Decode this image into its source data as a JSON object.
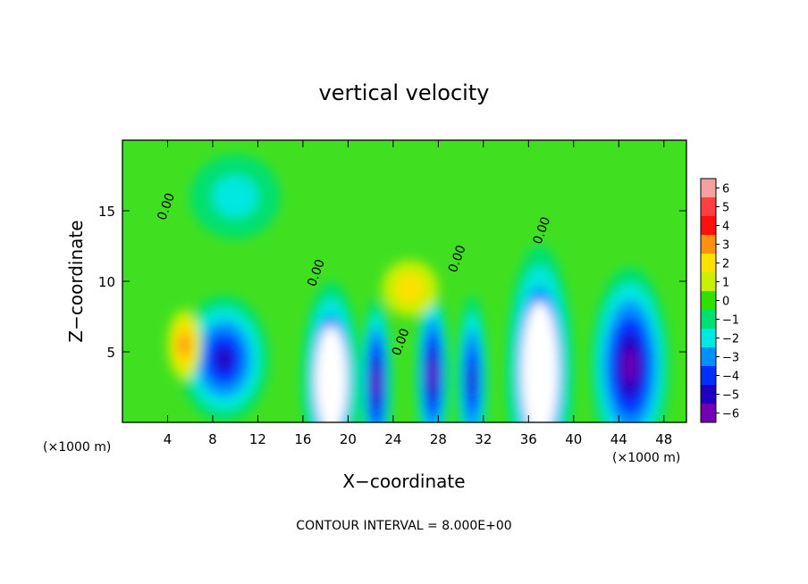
{
  "chart_data": {
    "type": "heatmap",
    "title": "vertical velocity",
    "xlabel": "X−coordinate",
    "ylabel": "Z−coordinate",
    "x_unit_left": "(×1000 m)",
    "x_unit_right": "(×1000 m)",
    "xlim": [
      0,
      50
    ],
    "ylim": [
      0,
      20
    ],
    "x_ticks": [
      4,
      8,
      12,
      16,
      20,
      24,
      28,
      32,
      36,
      40,
      44,
      48
    ],
    "x_tick_labels": [
      "4",
      "8",
      "12",
      "16",
      "20",
      "24",
      "28",
      "32",
      "36",
      "40",
      "44",
      "48"
    ],
    "y_ticks": [
      5,
      10,
      15
    ],
    "y_tick_labels": [
      "5",
      "10",
      "15"
    ],
    "colorbar": {
      "levels": [
        6,
        5,
        4,
        3,
        2,
        1,
        0,
        -1,
        -2,
        -3,
        -4,
        -5,
        -6
      ],
      "labels": [
        "6",
        "5",
        "4",
        "3",
        "2",
        "1",
        "0",
        "−1",
        "−2",
        "−3",
        "−4",
        "−5",
        "−6"
      ],
      "colors": [
        "#f8a0a0",
        "#ff4040",
        "#ff1010",
        "#ff9010",
        "#ffe000",
        "#c8f000",
        "#30e000",
        "#00e070",
        "#00e8e0",
        "#0090ff",
        "#0030ff",
        "#2000c0",
        "#7000b0"
      ]
    },
    "background_color": "#40e020",
    "cells": [
      {
        "x": 18.5,
        "z": 3.0,
        "rx": 2.6,
        "rz": 7.0,
        "w": -6,
        "label": ""
      },
      {
        "x": 22.5,
        "z": 2.8,
        "rx": 1.4,
        "rz": 6.0,
        "w": -5.5,
        "label": ""
      },
      {
        "x": 27.5,
        "z": 3.4,
        "rx": 1.5,
        "rz": 6.0,
        "w": -5.5,
        "label": ""
      },
      {
        "x": 31.0,
        "z": 3.0,
        "rx": 1.4,
        "rz": 6.0,
        "w": -5.0,
        "label": ""
      },
      {
        "x": 37.0,
        "z": 3.6,
        "rx": 3.0,
        "rz": 9.0,
        "w": -6,
        "label": ""
      },
      {
        "x": 45.0,
        "z": 4.0,
        "rx": 3.5,
        "rz": 7.0,
        "w": -5.5,
        "label": ""
      },
      {
        "x": 9.0,
        "z": 4.5,
        "rx": 4.0,
        "rz": 4.5,
        "w": -5.0,
        "label": ""
      },
      {
        "x": 5.5,
        "z": 5.5,
        "rx": 1.5,
        "rz": 2.5,
        "w": 3.0,
        "label": ""
      },
      {
        "x": 25.5,
        "z": 9.5,
        "rx": 2.5,
        "rz": 2.0,
        "w": 2.0,
        "label": ""
      },
      {
        "x": 10.0,
        "z": 16.0,
        "rx": 4.0,
        "rz": 3.0,
        "w": -1.5,
        "label": ""
      }
    ],
    "contour_labels": [
      {
        "x": 4.2,
        "z": 15.2,
        "text": "0.00"
      },
      {
        "x": 17.5,
        "z": 10.5,
        "text": "0.00"
      },
      {
        "x": 30.0,
        "z": 11.5,
        "text": "0.00"
      },
      {
        "x": 37.5,
        "z": 13.5,
        "text": "0.00"
      },
      {
        "x": 25.0,
        "z": 5.6,
        "text": "0.00"
      }
    ],
    "footer": "CONTOUR INTERVAL = 8.000E+00"
  }
}
